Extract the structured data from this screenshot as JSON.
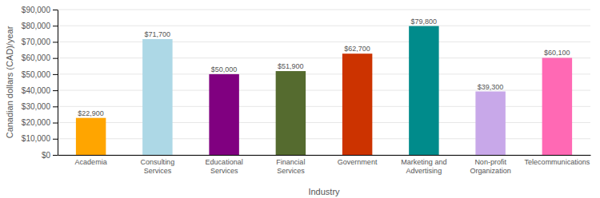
{
  "chart_data": {
    "type": "bar",
    "categories": [
      "Academia",
      "Consulting\nServices",
      "Educational\nServices",
      "Financial\nServices",
      "Government",
      "Marketing and\nAdvertising",
      "Non-profit\nOrganization",
      "Telecommunications"
    ],
    "values": [
      22900,
      71700,
      50000,
      51900,
      62700,
      79800,
      39300,
      60100
    ],
    "value_labels": [
      "$22,900",
      "$71,700",
      "$50,000",
      "$51,900",
      "$62,700",
      "$79,800",
      "$39,300",
      "$60,100"
    ],
    "data_labels": true,
    "colors": [
      "#FFA500",
      "#ADD8E6",
      "#800080",
      "#556B2F",
      "#CC3300",
      "#008B8B",
      "#C8A8E9",
      "#FF69B4"
    ],
    "xlabel": "Industry",
    "ylabel": "Canadian dollars (CAD)/year",
    "ylim": [
      0,
      90000
    ],
    "yticks": [
      {
        "value": 0,
        "label": "$0"
      },
      {
        "value": 10000,
        "label": "$10,000"
      },
      {
        "value": 20000,
        "label": "$20,000"
      },
      {
        "value": 30000,
        "label": "$30,000"
      },
      {
        "value": 40000,
        "label": "$40,000"
      },
      {
        "value": 50000,
        "label": "$50,000"
      },
      {
        "value": 60000,
        "label": "$60,000"
      },
      {
        "value": 70000,
        "label": "$70,000"
      },
      {
        "value": 80000,
        "label": "$80,000"
      },
      {
        "value": 90000,
        "label": "$90,000"
      }
    ],
    "grid": true
  }
}
